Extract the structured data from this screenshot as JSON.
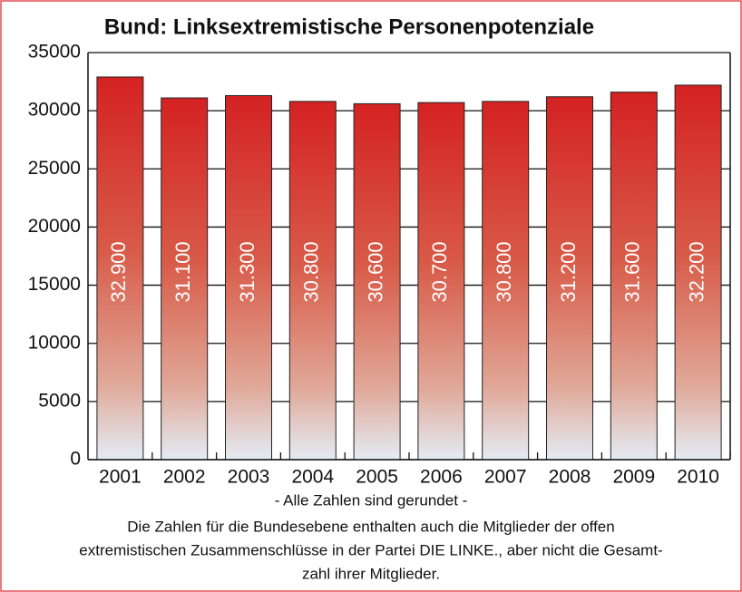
{
  "chart_data": {
    "type": "bar",
    "title": "Bund: Linksextremistische Personenpotenziale",
    "categories": [
      "2001",
      "2002",
      "2003",
      "2004",
      "2005",
      "2006",
      "2007",
      "2008",
      "2009",
      "2010"
    ],
    "values": [
      32900,
      31100,
      31300,
      30800,
      30600,
      30700,
      30800,
      31200,
      31600,
      32200
    ],
    "value_labels": [
      "32.900",
      "31.100",
      "31.300",
      "30.800",
      "30.600",
      "30.700",
      "30.800",
      "31.200",
      "31.600",
      "32.200"
    ],
    "color": "#d42222",
    "ylim": [
      0,
      35000
    ],
    "yticks": [
      0,
      5000,
      10000,
      15000,
      20000,
      25000,
      30000,
      35000
    ],
    "grid": true,
    "notes": [
      "- Alle Zahlen sind gerundet -",
      "Die Zahlen für die Bundesebene enthalten auch die Mitglieder der offen",
      "extremistischen Zusammenschlüsse in der Partei DIE LINKE., aber nicht die Gesamt-",
      "zahl ihrer Mitglieder."
    ]
  }
}
